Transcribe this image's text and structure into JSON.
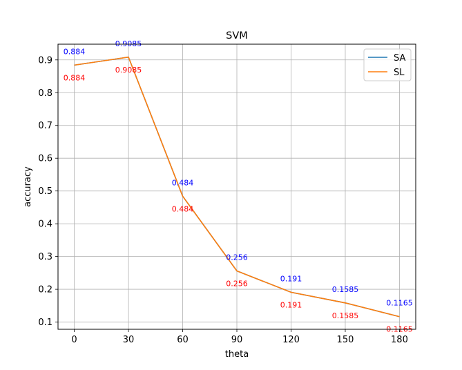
{
  "chart_data": {
    "type": "line",
    "title": "SVM",
    "xlabel": "theta",
    "ylabel": "accuracy",
    "x": [
      0,
      30,
      60,
      90,
      120,
      150,
      180
    ],
    "xticks": [
      0,
      30,
      60,
      90,
      120,
      150,
      180
    ],
    "yticks": [
      0.1,
      0.2,
      0.3,
      0.4,
      0.5,
      0.6,
      0.7,
      0.8,
      0.9
    ],
    "xlim": [
      -9,
      189
    ],
    "ylim": [
      0.078,
      0.948
    ],
    "grid": true,
    "legend_position": "top-right",
    "series": [
      {
        "name": "SA",
        "color": "#1f77b4",
        "values": [
          0.884,
          0.9085,
          0.484,
          0.256,
          0.191,
          0.1585,
          0.1165
        ],
        "labels": [
          "0.884",
          "0.9085",
          "0.484",
          "0.256",
          "0.191",
          "0.1585",
          "0.1165"
        ],
        "label_color": "#0000ff"
      },
      {
        "name": "SL",
        "color": "#ff7f0e",
        "values": [
          0.884,
          0.9085,
          0.484,
          0.256,
          0.191,
          0.1585,
          0.1165
        ],
        "labels": [
          "0.884",
          "0.9085",
          "0.484",
          "0.256",
          "0.191",
          "0.1585",
          "0.1165"
        ],
        "label_color": "#ff0000"
      }
    ]
  }
}
